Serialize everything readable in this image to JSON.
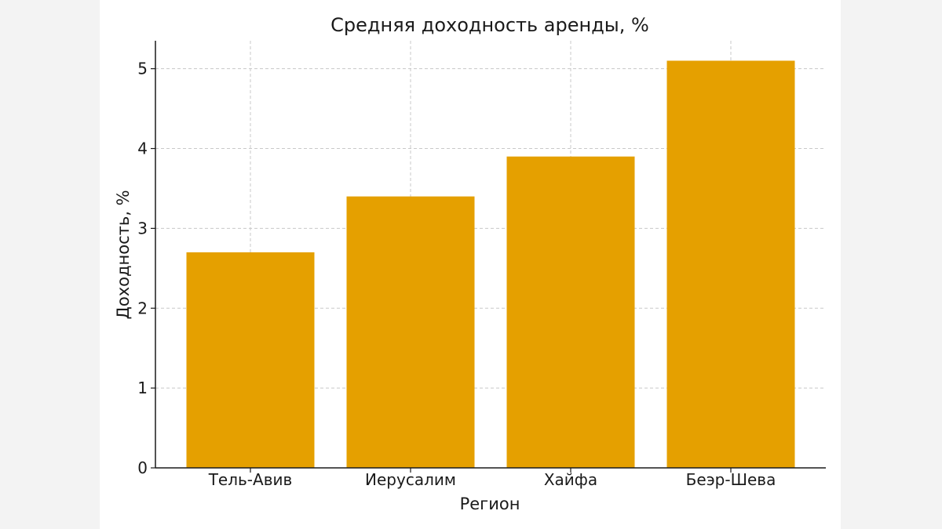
{
  "chart_data": {
    "type": "bar",
    "title": "Средняя доходность аренды, %",
    "xlabel": "Регион",
    "ylabel": "Доходность, %",
    "categories": [
      "Тель-Авив",
      "Иерусалим",
      "Хайфа",
      "Беэр-Шева"
    ],
    "values": [
      2.7,
      3.4,
      3.9,
      5.1
    ],
    "ylim": [
      0,
      5.35
    ],
    "yticks": [
      "0",
      "1",
      "2",
      "3",
      "4",
      "5"
    ],
    "grid": true,
    "bar_color": "#e5a000",
    "grid_color": "#c8c8c8"
  }
}
